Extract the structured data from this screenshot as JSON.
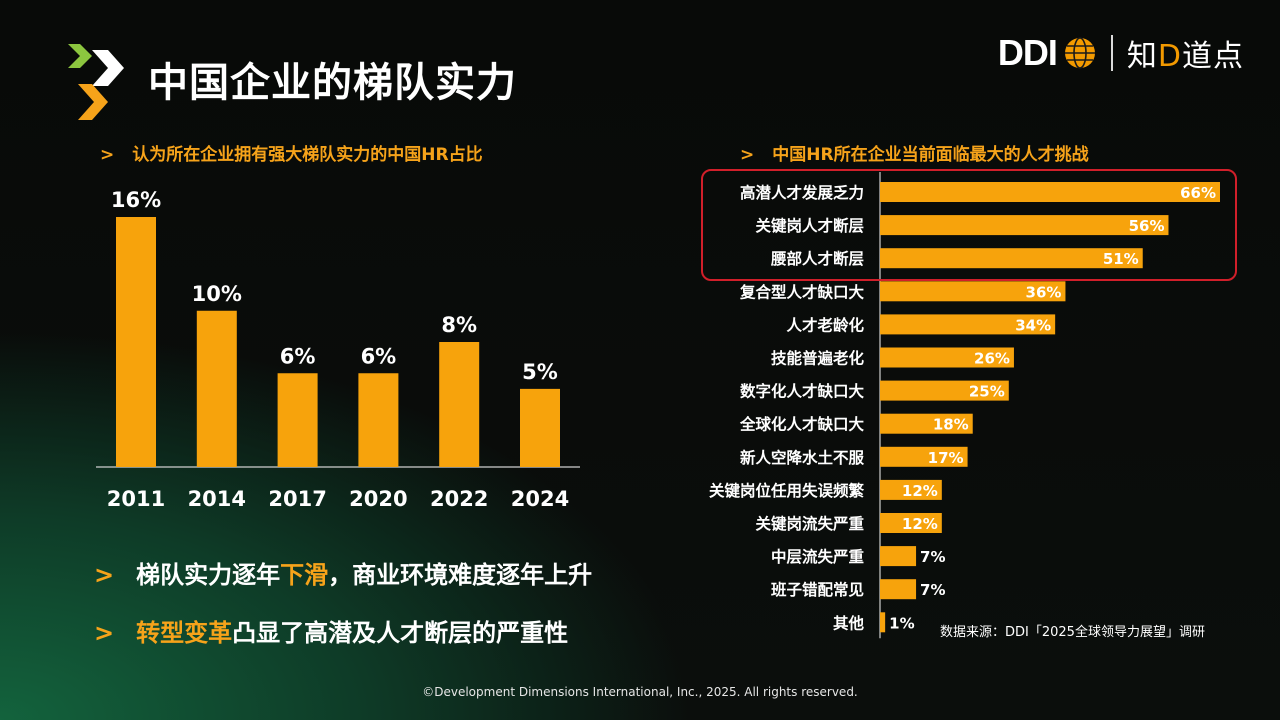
{
  "title": "中国企业的梯队实力",
  "brand": {
    "ddi": "DDI",
    "zdd_pre": "知",
    "zdd_mid": "D",
    "zdd_post": "道点"
  },
  "colors": {
    "accent": "#f6a31a",
    "bar": "#f7a30c",
    "highlight_box": "#d11f2a"
  },
  "left_subtitle": "认为所在企业拥有强大梯队实力的中国HR占比",
  "right_subtitle": "中国HR所在企业当前面临最大的人才挑战",
  "bullet_arrow": ">",
  "bullets": {
    "b1_pre": "梯队实力逐年",
    "b1_hl": "下滑",
    "b1_post": "，商业环境难度逐年上升",
    "b2_hl": "转型变革",
    "b2_post": "凸显了高潜及人才断层的严重性"
  },
  "source": "数据来源：DDI「2025全球领导力展望」调研",
  "copyright": "©Development Dimensions International, Inc., 2025. All rights reserved.",
  "chart_data": [
    {
      "type": "bar",
      "orientation": "vertical",
      "categories": [
        "2011",
        "2014",
        "2017",
        "2020",
        "2022",
        "2024"
      ],
      "values": [
        16,
        10,
        6,
        6,
        8,
        5
      ],
      "labels": [
        "16%",
        "10%",
        "6%",
        "6%",
        "8%",
        "5%"
      ],
      "title": "认为所在企业拥有强大梯队实力的中国HR占比",
      "ylim": [
        0,
        16
      ],
      "grid": false
    },
    {
      "type": "bar",
      "orientation": "horizontal",
      "categories": [
        "高潜人才发展乏力",
        "关键岗人才断层",
        "腰部人才断层",
        "复合型人才缺口大",
        "人才老龄化",
        "技能普遍老化",
        "数字化人才缺口大",
        "全球化人才缺口大",
        "新人空降水土不服",
        "关键岗位任用失误频繁",
        "关键岗流失严重",
        "中层流失严重",
        "班子错配常见",
        "其他"
      ],
      "values": [
        66,
        56,
        51,
        36,
        34,
        26,
        25,
        18,
        17,
        12,
        12,
        7,
        7,
        1
      ],
      "labels": [
        "66%",
        "56%",
        "51%",
        "36%",
        "34%",
        "26%",
        "25%",
        "18%",
        "17%",
        "12%",
        "12%",
        "7%",
        "7%",
        "1%"
      ],
      "title": "中国HR所在企业当前面临最大的人才挑战",
      "xlim": [
        0,
        66
      ],
      "highlighted": [
        "高潜人才发展乏力",
        "关键岗人才断层",
        "腰部人才断层"
      ],
      "grid": false
    }
  ]
}
